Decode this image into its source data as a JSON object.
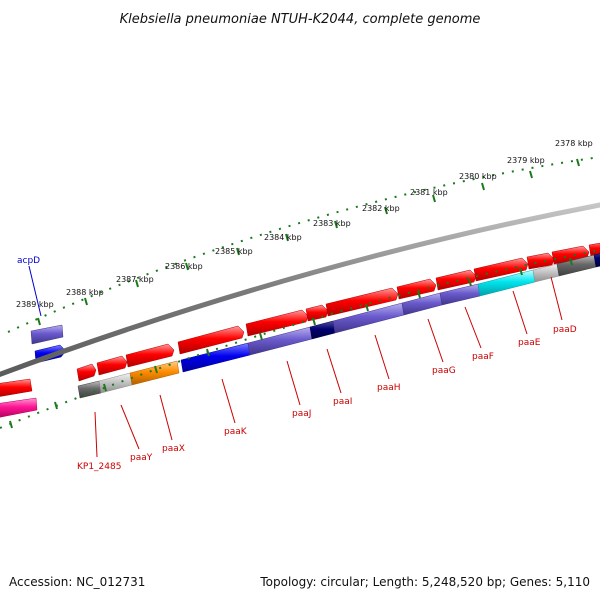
{
  "title": "Klebsiella pneumoniae NTUH-K2044, complete genome",
  "footer": {
    "accession": "Accession: NC_012731",
    "summary": "Topology: circular; Length: 5,248,520 bp; Genes: 5,110"
  },
  "ticks": [
    "2389 kbp",
    "2388 kbp",
    "2387 kbp",
    "2386 kbp",
    "2385 kbp",
    "2384 kbp",
    "2383 kbp",
    "2382 kbp",
    "2381 kbp",
    "2380 kbp",
    "2379 kbp",
    "2378 kbp"
  ],
  "genes": {
    "acpD": "acpD",
    "KP1_2485": "KP1_2485",
    "paaY": "paaY",
    "paaX": "paaX",
    "paaK": "paaK",
    "paaJ": "paaJ",
    "paaI": "paaI",
    "paaH": "paaH",
    "paaG": "paaG",
    "paaF": "paaF",
    "paaE": "paaE",
    "paaD": "paaD"
  },
  "colors": {
    "cds": "#ff0000",
    "backbone": "#808080",
    "tick_track": "#1a7a1a",
    "label_line": "#cc0000",
    "acpD_line": "#0000cc"
  }
}
